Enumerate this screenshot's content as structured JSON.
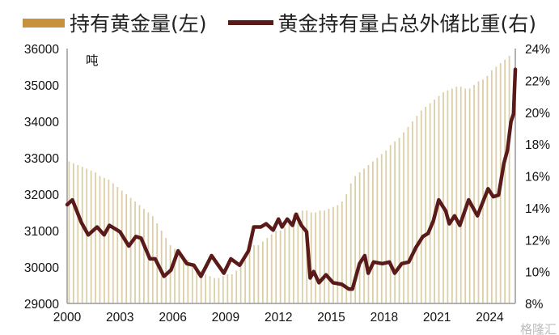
{
  "chart_data": {
    "type": "bar+line",
    "legend": [
      {
        "label": "持有黄金量(左)",
        "kind": "bar",
        "color": "#c8913d"
      },
      {
        "label": "黄金持有量占总外储比重(右)",
        "kind": "line",
        "color": "#5a1a1a"
      }
    ],
    "legend_placement": "top",
    "unit_label": "吨",
    "x_ticks": [
      "2000",
      "2003",
      "2006",
      "2009",
      "2012",
      "2015",
      "2018",
      "2021",
      "2024"
    ],
    "x_range": [
      2000,
      2025.45
    ],
    "y_left": {
      "range": [
        29000,
        36000
      ],
      "ticks": [
        "29000",
        "30000",
        "31000",
        "32000",
        "33000",
        "34000",
        "35000",
        "36000"
      ]
    },
    "y_right": {
      "range": [
        8,
        24
      ],
      "ticks": [
        "8%",
        "10%",
        "12%",
        "14%",
        "16%",
        "18%",
        "20%",
        "22%",
        "24%"
      ]
    },
    "grid": false,
    "bar_color": "#dccfa8",
    "line_color": "#5a1a1a",
    "bars": {
      "start": 2000,
      "step": 0.25,
      "values": [
        32900,
        32850,
        32800,
        32750,
        32700,
        32650,
        32600,
        32500,
        32450,
        32400,
        32300,
        32200,
        32100,
        32000,
        31900,
        31800,
        31700,
        31600,
        31500,
        31400,
        31200,
        31000,
        30800,
        30600,
        30500,
        30400,
        30300,
        30200,
        30100,
        30000,
        29900,
        29800,
        29750,
        29700,
        29700,
        29750,
        29800,
        29800,
        29900,
        30000,
        30200,
        30400,
        30600,
        30600,
        30700,
        30800,
        30900,
        31000,
        31000,
        31100,
        31300,
        31450,
        31500,
        31550,
        31550,
        31500,
        31500,
        31550,
        31550,
        31600,
        31650,
        31700,
        31800,
        32000,
        32300,
        32500,
        32600,
        32700,
        32800,
        32900,
        33000,
        33100,
        33200,
        33350,
        33450,
        33550,
        33700,
        33850,
        34000,
        34150,
        34300,
        34400,
        34500,
        34600,
        34700,
        34800,
        34850,
        34900,
        34950,
        34950,
        34900,
        34900,
        35000,
        35100,
        35150,
        35250,
        35400,
        35500,
        35600,
        35700,
        35800
      ]
    },
    "line": [
      [
        2000,
        14.2
      ],
      [
        2000.3,
        14.5
      ],
      [
        2000.8,
        13.1
      ],
      [
        2001.2,
        12.3
      ],
      [
        2001.7,
        12.8
      ],
      [
        2002.1,
        12.3
      ],
      [
        2002.4,
        12.9
      ],
      [
        2003,
        12.5
      ],
      [
        2003.5,
        11.6
      ],
      [
        2003.9,
        12.2
      ],
      [
        2004.2,
        12.1
      ],
      [
        2004.7,
        10.8
      ],
      [
        2005,
        10.8
      ],
      [
        2005.5,
        9.7
      ],
      [
        2005.9,
        10.1
      ],
      [
        2006.3,
        11.3
      ],
      [
        2006.8,
        10.5
      ],
      [
        2007.2,
        10.4
      ],
      [
        2007.6,
        9.7
      ],
      [
        2008.2,
        11
      ],
      [
        2008.9,
        9.9
      ],
      [
        2009.3,
        10.8
      ],
      [
        2009.8,
        10.4
      ],
      [
        2010.3,
        11.3
      ],
      [
        2010.6,
        12.8
      ],
      [
        2011,
        12.8
      ],
      [
        2011.3,
        13
      ],
      [
        2011.7,
        12.6
      ],
      [
        2012,
        13.3
      ],
      [
        2012.2,
        12.8
      ],
      [
        2012.5,
        13.3
      ],
      [
        2012.8,
        12.9
      ],
      [
        2013,
        13.6
      ],
      [
        2013.3,
        12.9
      ],
      [
        2013.6,
        12.5
      ],
      [
        2013.8,
        9.6
      ],
      [
        2014,
        10
      ],
      [
        2014.3,
        9.3
      ],
      [
        2014.7,
        9.8
      ],
      [
        2015.1,
        9.3
      ],
      [
        2015.6,
        9.2
      ],
      [
        2016,
        8.9
      ],
      [
        2016.2,
        8.9
      ],
      [
        2016.6,
        10.5
      ],
      [
        2016.9,
        11
      ],
      [
        2017.1,
        9.9
      ],
      [
        2017.4,
        10.6
      ],
      [
        2017.9,
        10.5
      ],
      [
        2018.3,
        10.6
      ],
      [
        2018.6,
        9.9
      ],
      [
        2019,
        10.5
      ],
      [
        2019.4,
        10.6
      ],
      [
        2019.8,
        11.5
      ],
      [
        2020.2,
        12.2
      ],
      [
        2020.5,
        12.4
      ],
      [
        2020.8,
        13.2
      ],
      [
        2021.1,
        14.5
      ],
      [
        2021.5,
        13.8
      ],
      [
        2021.7,
        13
      ],
      [
        2022,
        13.5
      ],
      [
        2022.3,
        12.9
      ],
      [
        2022.8,
        14.5
      ],
      [
        2023.3,
        13.5
      ],
      [
        2023.9,
        15.2
      ],
      [
        2024.2,
        14.7
      ],
      [
        2024.5,
        14.8
      ],
      [
        2024.8,
        16.8
      ],
      [
        2025,
        17.6
      ],
      [
        2025.2,
        19.4
      ],
      [
        2025.35,
        19.9
      ],
      [
        2025.45,
        22.7
      ]
    ],
    "watermark": "格隆汇"
  }
}
